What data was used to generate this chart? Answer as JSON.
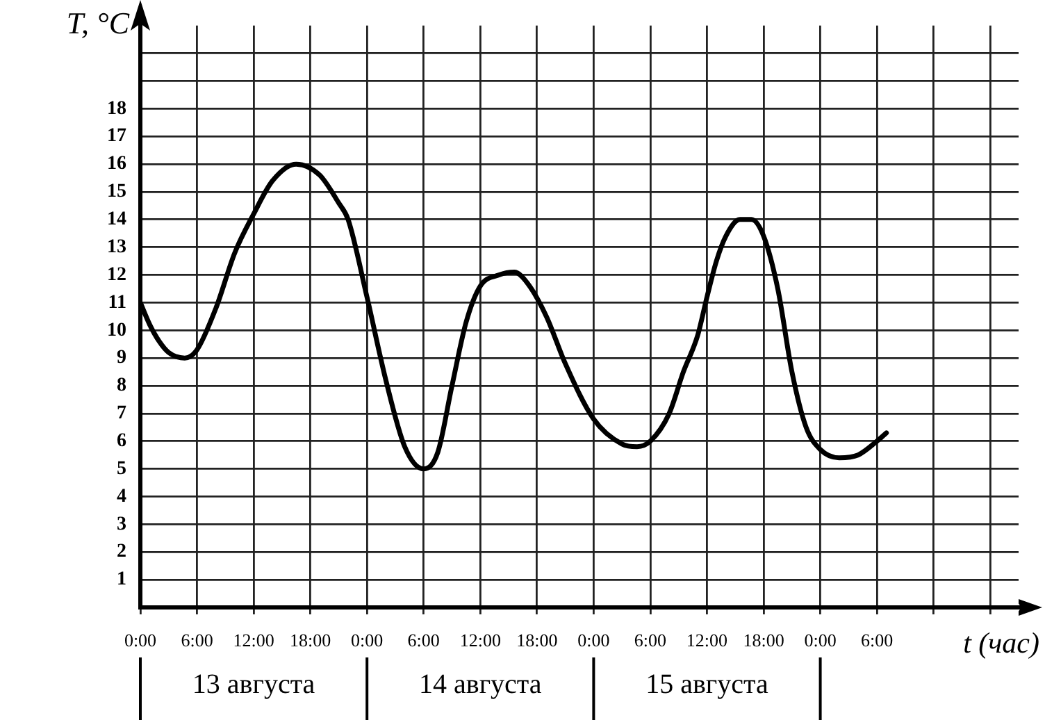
{
  "chart_data": {
    "type": "line",
    "xlabel": "t (час)",
    "ylabel": "T, °C",
    "x": [
      "--08-13T00:00",
      "--08-13T01:00",
      "--08-13T02:00",
      "--08-13T03:00",
      "--08-13T04:42",
      "--08-13T06:00",
      "--08-13T08:00",
      "--08-13T10:00",
      "--08-13T12:00",
      "--08-13T14:00",
      "--08-13T16:30",
      "--08-13T19:00",
      "--08-13T21:00",
      "--08-13T22:00",
      "--08-14T00:00",
      "--08-14T02:00",
      "--08-14T04:00",
      "--08-14T06:00",
      "--08-14T07:30",
      "--08-14T09:00",
      "--08-14T10:30",
      "--08-14T12:00",
      "--08-14T14:00",
      "--08-14T15:36",
      "--08-14T17:00",
      "--08-14T19:00",
      "--08-14T21:00",
      "--08-15T00:00",
      "--08-15T03:00",
      "--08-15T04:36",
      "--08-15T06:00",
      "--08-15T08:00",
      "--08-15T09:30",
      "--08-15T11:00",
      "--08-15T12:00",
      "--08-15T13:00",
      "--08-15T14:00",
      "--08-15T15:30",
      "--08-15T16:42",
      "--08-15T18:00",
      "--08-15T19:30",
      "--08-15T21:00",
      "--08-15T22:30",
      "--08-16T00:00",
      "--08-16T02:00",
      "--08-16T04:00",
      "--08-16T06:00",
      "--08-16T07:00"
    ],
    "series": [
      {
        "color": "#000000",
        "values": [
          11,
          10.2,
          9.6,
          9.2,
          9,
          9.3,
          10.8,
          12.8,
          14.2,
          15.4,
          16,
          15.6,
          14.6,
          14,
          11.2,
          8.2,
          5.8,
          5,
          5.6,
          8,
          10.3,
          11.6,
          12,
          12.1,
          11.7,
          10.5,
          8.8,
          6.8,
          5.9,
          5.8,
          6,
          7,
          8.5,
          9.8,
          11.2,
          12.5,
          13.4,
          14,
          14,
          13.4,
          11.5,
          8.5,
          6.5,
          5.7,
          5.4,
          5.5,
          6,
          6.3
        ]
      }
    ],
    "xlim": [
      "--08-13T00:00",
      "--08-16T21:00"
    ],
    "xticks": [
      {
        "value": "--08-13T00:00",
        "label": "0:00"
      },
      {
        "value": "--08-13T06:00",
        "label": "6:00"
      },
      {
        "value": "--08-13T12:00",
        "label": "12:00"
      },
      {
        "value": "--08-13T18:00",
        "label": "18:00"
      },
      {
        "value": "--08-14T00:00",
        "label": "0:00"
      },
      {
        "value": "--08-14T06:00",
        "label": "6:00"
      },
      {
        "value": "--08-14T12:00",
        "label": "12:00"
      },
      {
        "value": "--08-14T18:00",
        "label": "18:00"
      },
      {
        "value": "--08-15T00:00",
        "label": "0:00"
      },
      {
        "value": "--08-15T06:00",
        "label": "6:00"
      },
      {
        "value": "--08-15T12:00",
        "label": "12:00"
      },
      {
        "value": "--08-15T18:00",
        "label": "18:00"
      },
      {
        "value": "--08-16T00:00",
        "label": "0:00"
      },
      {
        "value": "--08-16T06:00",
        "label": "6:00"
      },
      {
        "value": "--08-16T12:00",
        "label": null
      },
      {
        "value": "--08-16T18:00",
        "label": null
      }
    ],
    "ylim": [
      0,
      21
    ],
    "yticks": [
      {
        "value": 0,
        "label": null
      },
      1,
      2,
      3,
      4,
      5,
      6,
      7,
      8,
      9,
      10,
      11,
      12,
      13,
      14,
      15,
      16,
      17,
      18,
      {
        "value": 19,
        "label": null
      },
      {
        "value": 20,
        "label": null
      }
    ],
    "annotations": [
      "13 августа",
      "14 августа",
      "15 августа"
    ],
    "grid": true,
    "legend": false,
    "marker": "none",
    "line_style": "solid"
  }
}
